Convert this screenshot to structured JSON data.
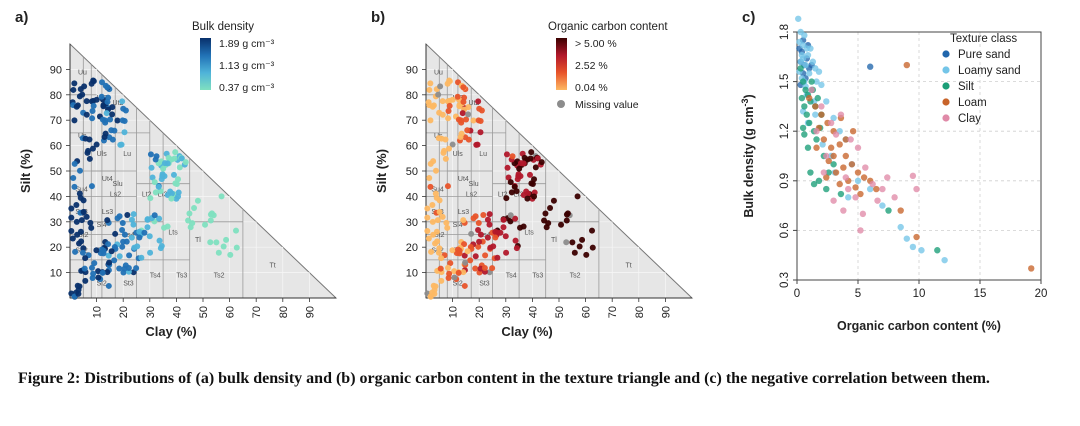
{
  "figure": {
    "caption": "Figure 2: Distributions of (a) bulk density and (b) organic carbon content in the texture triangle and (c) the negative correlation between them."
  },
  "chart_data": [
    {
      "type": "scatter",
      "panel": "a)",
      "xlabel": "Clay (%)",
      "ylabel": "Silt (%)",
      "x_ticks": [
        "10",
        "20",
        "30",
        "40",
        "50",
        "60",
        "70",
        "80",
        "90"
      ],
      "y_ticks": [
        "10",
        "20",
        "30",
        "40",
        "50",
        "60",
        "70",
        "80",
        "90"
      ],
      "texture_classes": [
        "Uu",
        "Ut3",
        "Ut2",
        "Us",
        "Uls",
        "Lu",
        "Su4",
        "Slu",
        "Ut4",
        "Su3",
        "Ls2",
        "Lt2",
        "Lt3",
        "Ls3",
        "Sl4",
        "St2",
        "Ls4",
        "Lts",
        "Tl",
        "Su2",
        "Sl3",
        "Sl2",
        "St3",
        "Ts4",
        "Ts3",
        "Ts2",
        "Tt"
      ],
      "legend": {
        "title": "Bulk density",
        "labels": [
          "1.89 g cm⁻³",
          "1.13 g cm⁻³",
          "0.37 g cm⁻³"
        ],
        "colors": [
          "#08306b",
          "#2171b5",
          "#4fb3d9",
          "#7fe0c0"
        ]
      }
    },
    {
      "type": "scatter",
      "panel": "b)",
      "xlabel": "Clay (%)",
      "ylabel": "Silt (%)",
      "x_ticks": [
        "10",
        "20",
        "30",
        "40",
        "50",
        "60",
        "70",
        "80",
        "90"
      ],
      "y_ticks": [
        "10",
        "20",
        "30",
        "40",
        "50",
        "60",
        "70",
        "80",
        "90"
      ],
      "texture_classes": [
        "Uu",
        "Ut3",
        "Ut2",
        "Us",
        "Uls",
        "Lu",
        "Su4",
        "Slu",
        "Ut4",
        "Su3",
        "Ls2",
        "Lt2",
        "Lt3",
        "Ls3",
        "Sl4",
        "St2",
        "Ls4",
        "Lts",
        "Tl",
        "Su2",
        "Sl3",
        "Sl2",
        "St3",
        "Ts4",
        "Ts3",
        "Ts2",
        "Tt"
      ],
      "legend": {
        "title": "Organic carbon content",
        "labels": [
          "> 5.00 %",
          "2.52 %",
          "0.04 %"
        ],
        "colors": [
          "#3b0000",
          "#b2182b",
          "#e8542a",
          "#fdb863"
        ],
        "missing_label": "Missing value",
        "missing_color": "#8c8c8c"
      }
    },
    {
      "type": "scatter",
      "panel": "c)",
      "xlabel": "Organic carbon content (%)",
      "ylabel": "Bulk density (g cm",
      "ylabel_sup": "-3",
      "ylabel_tail": ")",
      "xlim": [
        0,
        20
      ],
      "ylim": [
        0.3,
        1.8
      ],
      "x_ticks": [
        "0",
        "5",
        "10",
        "15",
        "20"
      ],
      "y_ticks": [
        "0.3",
        "0.6",
        "0.9",
        "1.2",
        "1.5",
        "1.8"
      ],
      "grid": true,
      "legend_position": "top-right",
      "legend_title": "Texture class",
      "series": [
        {
          "name": "Pure sand",
          "color": "#2166ac",
          "points": [
            [
              0.3,
              1.62
            ],
            [
              0.4,
              1.68
            ],
            [
              0.6,
              1.6
            ],
            [
              0.5,
              1.55
            ],
            [
              0.8,
              1.64
            ],
            [
              0.2,
              1.7
            ],
            [
              0.7,
              1.52
            ],
            [
              1.0,
              1.58
            ],
            [
              0.3,
              1.48
            ],
            [
              0.9,
              1.72
            ],
            [
              1.2,
              1.6
            ],
            [
              0.5,
              1.75
            ],
            [
              6.0,
              1.59
            ]
          ]
        },
        {
          "name": "Loamy sand",
          "color": "#74c5e8",
          "points": [
            [
              0.1,
              1.88
            ],
            [
              0.3,
              1.8
            ],
            [
              0.2,
              1.74
            ],
            [
              0.5,
              1.72
            ],
            [
              0.4,
              1.66
            ],
            [
              0.6,
              1.78
            ],
            [
              0.8,
              1.7
            ],
            [
              0.3,
              1.62
            ],
            [
              0.5,
              1.64
            ],
            [
              0.7,
              1.6
            ],
            [
              0.9,
              1.66
            ],
            [
              1.0,
              1.55
            ],
            [
              1.3,
              1.62
            ],
            [
              1.5,
              1.58
            ],
            [
              1.1,
              1.7
            ],
            [
              1.8,
              1.56
            ],
            [
              0.4,
              1.52
            ],
            [
              0.6,
              1.5
            ],
            [
              0.2,
              1.56
            ],
            [
              1.6,
              1.5
            ],
            [
              2.0,
              1.48
            ],
            [
              0.8,
              1.42
            ],
            [
              1.2,
              1.45
            ],
            [
              2.4,
              1.38
            ],
            [
              3.0,
              1.28
            ],
            [
              1.5,
              1.3
            ],
            [
              0.5,
              1.32
            ],
            [
              3.5,
              1.2
            ],
            [
              4.0,
              1.15
            ],
            [
              2.8,
              1.05
            ],
            [
              4.5,
              1.0
            ],
            [
              5.0,
              0.9
            ],
            [
              6.0,
              0.85
            ],
            [
              7.0,
              0.75
            ],
            [
              8.5,
              0.62
            ],
            [
              9.0,
              0.55
            ],
            [
              9.5,
              0.5
            ],
            [
              10.2,
              0.48
            ],
            [
              12.1,
              0.42
            ],
            [
              4.2,
              0.8
            ],
            [
              3.1,
              0.95
            ],
            [
              2.1,
              1.12
            ],
            [
              0.9,
              1.25
            ],
            [
              1.4,
              1.38
            ],
            [
              0.7,
              1.47
            ]
          ]
        },
        {
          "name": "Silt",
          "color": "#1a9e77",
          "points": [
            [
              0.3,
              1.58
            ],
            [
              0.5,
              1.5
            ],
            [
              0.7,
              1.45
            ],
            [
              0.9,
              1.42
            ],
            [
              0.4,
              1.4
            ],
            [
              1.1,
              1.38
            ],
            [
              0.6,
              1.35
            ],
            [
              1.3,
              1.45
            ],
            [
              0.8,
              1.3
            ],
            [
              1.5,
              1.35
            ],
            [
              1.0,
              1.25
            ],
            [
              1.7,
              1.4
            ],
            [
              0.5,
              1.22
            ],
            [
              1.2,
              1.5
            ],
            [
              2.0,
              1.3
            ],
            [
              1.4,
              1.2
            ],
            [
              0.9,
              1.1
            ],
            [
              1.6,
              1.15
            ],
            [
              1.1,
              0.95
            ],
            [
              2.2,
              1.05
            ],
            [
              1.8,
              0.9
            ],
            [
              2.6,
              0.95
            ],
            [
              1.4,
              0.88
            ],
            [
              3.0,
              1.0
            ],
            [
              2.4,
              0.85
            ],
            [
              7.5,
              0.72
            ],
            [
              11.5,
              0.48
            ],
            [
              3.6,
              0.82
            ],
            [
              0.6,
              1.18
            ],
            [
              1.9,
              1.22
            ]
          ]
        },
        {
          "name": "Loam",
          "color": "#c8642a",
          "points": [
            [
              1.0,
              1.4
            ],
            [
              1.5,
              1.35
            ],
            [
              2.0,
              1.3
            ],
            [
              2.5,
              1.25
            ],
            [
              3.0,
              1.2
            ],
            [
              2.2,
              1.15
            ],
            [
              3.5,
              1.12
            ],
            [
              3.0,
              1.05
            ],
            [
              4.0,
              1.05
            ],
            [
              3.8,
              0.98
            ],
            [
              4.5,
              1.0
            ],
            [
              5.0,
              0.95
            ],
            [
              4.2,
              0.9
            ],
            [
              3.5,
              0.88
            ],
            [
              5.5,
              0.92
            ],
            [
              6.0,
              0.9
            ],
            [
              2.8,
              1.1
            ],
            [
              1.8,
              1.22
            ],
            [
              2.6,
              1.02
            ],
            [
              4.8,
              0.86
            ],
            [
              3.2,
              0.95
            ],
            [
              4.0,
              1.15
            ],
            [
              4.6,
              1.2
            ],
            [
              3.6,
              1.28
            ],
            [
              5.2,
              0.82
            ],
            [
              9.0,
              1.6
            ],
            [
              8.5,
              0.72
            ],
            [
              9.8,
              0.56
            ],
            [
              19.2,
              0.37
            ],
            [
              6.5,
              0.85
            ],
            [
              2.4,
              0.92
            ],
            [
              1.6,
              1.1
            ]
          ]
        },
        {
          "name": "Clay",
          "color": "#e08aa8",
          "points": [
            [
              1.2,
              1.45
            ],
            [
              2.0,
              1.35
            ],
            [
              2.8,
              1.25
            ],
            [
              3.6,
              1.3
            ],
            [
              4.4,
              1.15
            ],
            [
              5.0,
              1.1
            ],
            [
              3.2,
              1.18
            ],
            [
              4.0,
              0.92
            ],
            [
              5.6,
              0.98
            ],
            [
              6.2,
              0.88
            ],
            [
              7.0,
              0.85
            ],
            [
              3.0,
              0.78
            ],
            [
              4.8,
              0.8
            ],
            [
              5.4,
              0.7
            ],
            [
              8.0,
              0.8
            ],
            [
              9.5,
              0.93
            ],
            [
              9.8,
              0.85
            ],
            [
              5.2,
              0.6
            ],
            [
              3.8,
              0.72
            ],
            [
              2.4,
              1.05
            ],
            [
              6.6,
              0.78
            ],
            [
              7.4,
              0.92
            ],
            [
              1.6,
              1.2
            ],
            [
              2.2,
              0.95
            ],
            [
              4.2,
              0.85
            ]
          ]
        }
      ]
    }
  ]
}
